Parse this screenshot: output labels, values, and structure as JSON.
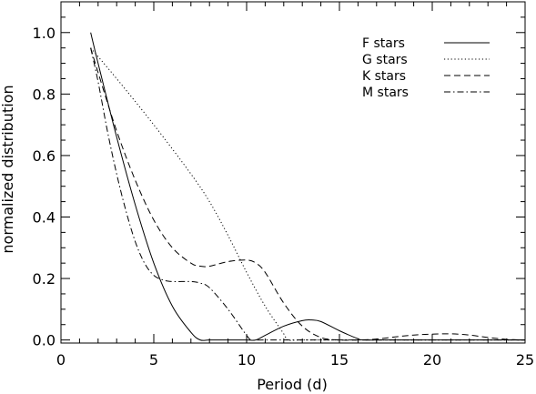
{
  "chart_data": {
    "type": "line",
    "xlabel": "Period (d)",
    "ylabel": "normalized distribution",
    "xlim": [
      0,
      25
    ],
    "ylim": [
      -0.01,
      1.1
    ],
    "xticks": [
      "0",
      "5",
      "10",
      "15",
      "20",
      "25"
    ],
    "yticks": [
      "0.0",
      "0.2",
      "0.4",
      "0.6",
      "0.8",
      "1.0"
    ],
    "grid": false,
    "legend_position": "top-right",
    "series": [
      {
        "name": "F stars",
        "style": "solid",
        "x": [
          1.6,
          2.0,
          3.0,
          4.0,
          5.0,
          6.0,
          7.0,
          7.5,
          8.0,
          9.0,
          10.0,
          10.5,
          11.0,
          12.0,
          13.0,
          13.5,
          14.0,
          15.0,
          16.0,
          16.3,
          18.0,
          20.0,
          22.0,
          24.0,
          25.0
        ],
        "values": [
          1.0,
          0.9,
          0.66,
          0.44,
          0.25,
          0.11,
          0.025,
          0.0,
          0.0,
          0.0,
          0.0,
          0.0,
          0.015,
          0.045,
          0.063,
          0.065,
          0.06,
          0.03,
          0.004,
          0.0,
          0.0,
          0.0,
          0.0,
          0.0,
          0.0
        ]
      },
      {
        "name": "G stars",
        "style": "dotted",
        "x": [
          1.6,
          3.0,
          5.0,
          7.0,
          8.0,
          9.0,
          10.0,
          11.0,
          12.0,
          12.2,
          13.0,
          15.0,
          20.0,
          25.0
        ],
        "values": [
          0.95,
          0.85,
          0.7,
          0.54,
          0.45,
          0.34,
          0.22,
          0.11,
          0.02,
          0.0,
          0.0,
          0.0,
          0.0,
          0.0
        ]
      },
      {
        "name": "K stars",
        "style": "dashed",
        "x": [
          1.6,
          2.0,
          3.0,
          4.0,
          5.0,
          6.0,
          7.0,
          7.5,
          8.0,
          9.0,
          10.0,
          10.5,
          11.0,
          12.0,
          13.0,
          14.0,
          15.0,
          16.0,
          17.0,
          18.0,
          19.0,
          20.0,
          21.0,
          22.0,
          23.0,
          24.0,
          25.0
        ],
        "values": [
          0.95,
          0.87,
          0.68,
          0.52,
          0.39,
          0.3,
          0.25,
          0.24,
          0.24,
          0.255,
          0.26,
          0.25,
          0.22,
          0.12,
          0.045,
          0.008,
          0.0,
          0.0,
          0.003,
          0.01,
          0.016,
          0.019,
          0.02,
          0.016,
          0.008,
          0.002,
          0.0
        ]
      },
      {
        "name": "M stars",
        "style": "dashdot",
        "x": [
          1.6,
          2.0,
          2.5,
          3.0,
          3.5,
          4.0,
          4.5,
          5.0,
          5.5,
          6.0,
          7.0,
          7.5,
          8.0,
          9.0,
          10.0,
          10.3,
          11.0,
          15.0,
          20.0,
          25.0
        ],
        "values": [
          0.95,
          0.84,
          0.68,
          0.54,
          0.42,
          0.32,
          0.25,
          0.21,
          0.195,
          0.19,
          0.19,
          0.185,
          0.17,
          0.1,
          0.015,
          0.0,
          0.0,
          0.0,
          0.0,
          0.0
        ]
      }
    ]
  }
}
